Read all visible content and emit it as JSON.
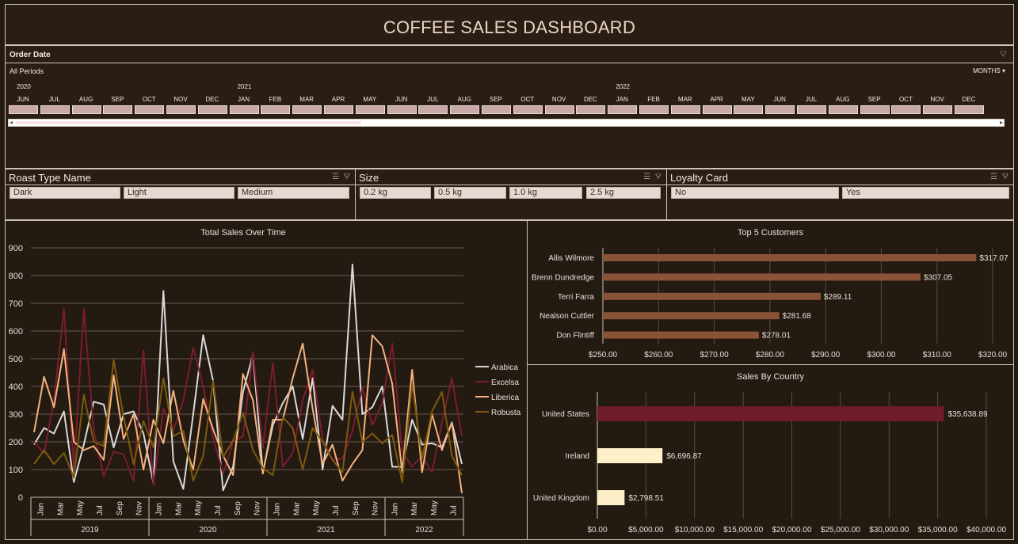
{
  "dashboard": {
    "title": "COFFEE SALES DASHBOARD"
  },
  "timeline": {
    "header": "Order Date",
    "periods_label": "All Periods",
    "unit_selector": "MONTHS",
    "years": [
      "2020",
      "2021",
      "2022"
    ],
    "months": [
      "JUN",
      "JUL",
      "AUG",
      "SEP",
      "OCT",
      "NOV",
      "DEC",
      "JAN",
      "FEB",
      "MAR",
      "APR",
      "MAY",
      "JUN",
      "JUL",
      "AUG",
      "SEP",
      "OCT",
      "NOV",
      "DEC",
      "JAN",
      "FEB",
      "MAR",
      "APR",
      "MAY",
      "JUN",
      "JUL",
      "AUG",
      "SEP",
      "OCT",
      "NOV",
      "DEC"
    ]
  },
  "slicers": {
    "roast": {
      "title": "Roast Type Name",
      "items": [
        "Dark",
        "Light",
        "Medium"
      ]
    },
    "size": {
      "title": "Size",
      "items": [
        "0.2 kg",
        "0.5 kg",
        "1.0 kg",
        "2.5 kg"
      ]
    },
    "loyalty": {
      "title": "Loyalty Card",
      "items": [
        "No",
        "Yes"
      ]
    }
  },
  "chart_data": [
    {
      "type": "line",
      "title": "Total Sales Over Time",
      "ylim": [
        0,
        900
      ],
      "yticks": [
        0,
        100,
        200,
        300,
        400,
        500,
        600,
        700,
        800,
        900
      ],
      "month_labels": [
        "Jan",
        "Mar",
        "May",
        "Jul",
        "Sep",
        "Nov",
        "Jan",
        "Mar",
        "May",
        "Jul",
        "Sep",
        "Nov",
        "Jan",
        "Mar",
        "May",
        "Jul",
        "Sep",
        "Nov",
        "Jan",
        "Mar",
        "May",
        "Jul"
      ],
      "years": [
        "2019",
        "2020",
        "2021",
        "2022"
      ],
      "legend_position": "right",
      "series": [
        {
          "name": "Arabica",
          "color": "#d9d9d9",
          "values": [
            190,
            250,
            230,
            310,
            55,
            190,
            345,
            335,
            180,
            300,
            310,
            230,
            50,
            745,
            130,
            30,
            300,
            585,
            420,
            25,
            110,
            380,
            515,
            90,
            260,
            340,
            400,
            210,
            430,
            100,
            330,
            280,
            840,
            300,
            325,
            400,
            110,
            110,
            280,
            190,
            195,
            180,
            270,
            120
          ]
        },
        {
          "name": "Excelsa",
          "color": "#7b1d2e",
          "values": [
            200,
            160,
            350,
            680,
            100,
            680,
            240,
            75,
            165,
            155,
            60,
            530,
            45,
            320,
            240,
            350,
            540,
            400,
            215,
            85,
            200,
            220,
            525,
            180,
            485,
            110,
            160,
            350,
            460,
            210,
            135,
            140,
            240,
            395,
            260,
            340,
            555,
            165,
            110,
            150,
            90,
            270,
            430,
            220
          ]
        },
        {
          "name": "Liberica",
          "color": "#f5b27d",
          "values": [
            235,
            435,
            325,
            535,
            200,
            170,
            185,
            135,
            440,
            210,
            300,
            100,
            280,
            195,
            385,
            205,
            100,
            355,
            245,
            150,
            80,
            445,
            350,
            85,
            280,
            280,
            430,
            555,
            320,
            120,
            190,
            60,
            120,
            170,
            585,
            545,
            410,
            90,
            460,
            90,
            300,
            170,
            270,
            15
          ]
        },
        {
          "name": "Robusta",
          "color": "#7d5a0c",
          "values": [
            120,
            170,
            120,
            160,
            70,
            370,
            200,
            185,
            495,
            290,
            120,
            275,
            180,
            430,
            220,
            240,
            60,
            150,
            420,
            145,
            205,
            305,
            170,
            105,
            80,
            290,
            250,
            100,
            250,
            200,
            135,
            90,
            380,
            200,
            230,
            195,
            225,
            55,
            410,
            140,
            310,
            380,
            150,
            80
          ]
        }
      ]
    },
    {
      "type": "bar",
      "title": "Top 5 Customers",
      "categories": [
        "Allis Wilmore",
        "Brenn Dundredge",
        "Terri Farra",
        "Nealson Cuttler",
        "Don Flintiff"
      ],
      "values": [
        317.07,
        307.05,
        289.11,
        281.68,
        278.01
      ],
      "value_labels": [
        "$317.07",
        "$307.05",
        "$289.11",
        "$281.68",
        "$278.01"
      ],
      "xlim": [
        250,
        320
      ],
      "xticks": [
        "$250.00",
        "$260.00",
        "$270.00",
        "$280.00",
        "$290.00",
        "$300.00",
        "$310.00",
        "$320.00"
      ],
      "color": "#8a5236"
    },
    {
      "type": "bar",
      "title": "Sales By Country",
      "categories": [
        "United States",
        "Ireland",
        "United Kingdom"
      ],
      "values": [
        35638.89,
        6696.87,
        2798.51
      ],
      "value_labels": [
        "$35,638.89",
        "$6,696.87",
        "$2,798.51"
      ],
      "colors": [
        "#6e1b2b",
        "#fdf0c8",
        "#fdf0c8"
      ],
      "xlim": [
        0,
        40000
      ],
      "xticks": [
        "$0.00",
        "$5,000.00",
        "$10,000.00",
        "$15,000.00",
        "$20,000.00",
        "$25,000.00",
        "$30,000.00",
        "$35,000.00",
        "$40,000.00"
      ]
    }
  ]
}
